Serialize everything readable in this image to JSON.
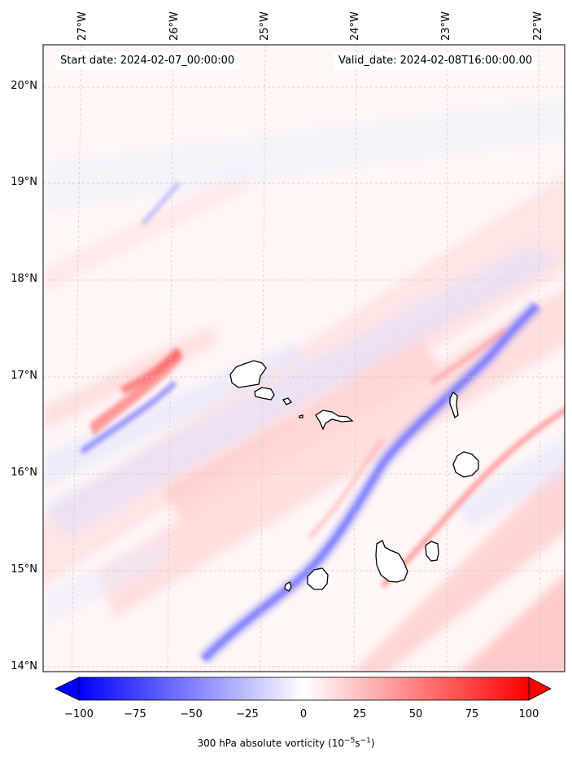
{
  "map": {
    "start_label": "Start date: 2024-02-07_00:00:00",
    "valid_label": "Valid_date: 2024-02-08T16:00:00.00",
    "longitude_labels": [
      "27°W",
      "26°W",
      "25°W",
      "24°W",
      "23°W",
      "22°W"
    ],
    "latitude_labels": [
      "20°N",
      "19°N",
      "18°N",
      "17°N",
      "16°N",
      "15°N",
      "14°N"
    ],
    "islands": [
      "Santo Antão",
      "São Vicente",
      "Santa Luzia",
      "Branco",
      "São Nicolau",
      "Sal",
      "Boa Vista",
      "Maio",
      "Santiago",
      "Fogo",
      "Brava"
    ]
  },
  "colorbar": {
    "label_text": "300 hPa absolute vorticity (10",
    "unit_exp1": "−5",
    "unit_mid": "s",
    "unit_exp2": "−1",
    "unit_close": ")",
    "ticks": [
      "−100",
      "−75",
      "−50",
      "−25",
      "0",
      "25",
      "50",
      "75",
      "100"
    ],
    "range": [
      -100,
      100
    ],
    "colors": {
      "neg": "#0000ff",
      "mid": "#ffffff",
      "pos": "#ff0000"
    }
  }
}
